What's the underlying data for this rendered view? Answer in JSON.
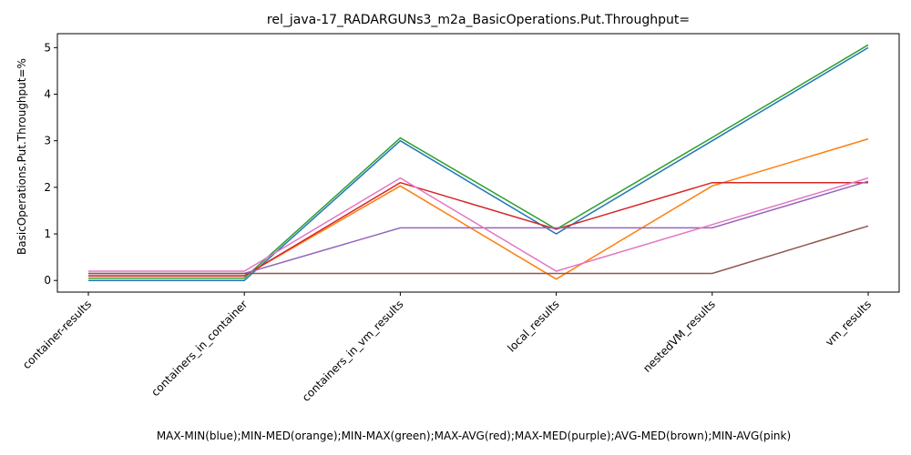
{
  "chart_data": {
    "type": "line",
    "title": "rel_java-17_RADARGUNs3_m2a_BasicOperations.Put.Throughput=",
    "xlabel": "MAX-MIN(blue);MIN-MED(orange);MIN-MAX(green);MAX-AVG(red);MAX-MED(purple);AVG-MED(brown);MIN-AVG(pink)",
    "ylabel": "BasicOperations.Put.Throughput=%",
    "categories": [
      "container-results",
      "containers_in_container",
      "containers_in_vm_results",
      "local_results",
      "nestedVM_results",
      "vm_results"
    ],
    "ylim": [
      -0.25,
      5.3
    ],
    "yticks": [
      0,
      1,
      2,
      3,
      4,
      5
    ],
    "grid": false,
    "series": [
      {
        "color": "#1f77b4",
        "values": [
          0.0,
          0.0,
          3.0,
          1.0,
          3.0,
          5.0
        ]
      },
      {
        "color": "#ff7f0e",
        "values": [
          0.1,
          0.1,
          2.03,
          0.03,
          2.03,
          3.04
        ]
      },
      {
        "color": "#2ca02c",
        "values": [
          0.05,
          0.05,
          3.06,
          1.1,
          3.07,
          5.06
        ]
      },
      {
        "color": "#d62728",
        "values": [
          0.1,
          0.1,
          2.1,
          1.1,
          2.1,
          2.1
        ]
      },
      {
        "color": "#9467bd",
        "values": [
          0.15,
          0.15,
          1.13,
          1.13,
          1.13,
          2.13
        ]
      },
      {
        "color": "#8c564b",
        "values": [
          0.15,
          0.15,
          0.15,
          0.15,
          0.15,
          1.17
        ]
      },
      {
        "color": "#e377c2",
        "values": [
          0.2,
          0.2,
          2.2,
          0.2,
          1.2,
          2.2
        ]
      }
    ]
  }
}
